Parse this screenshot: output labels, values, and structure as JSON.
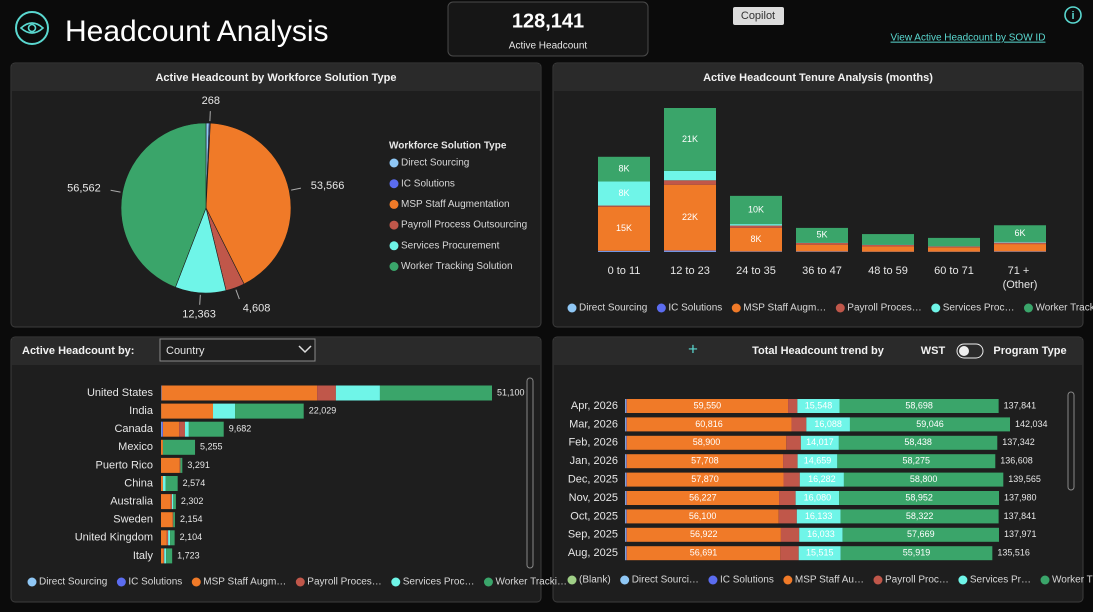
{
  "header": {
    "title": "Headcount Analysis",
    "kpi_value": "128,141",
    "kpi_label": "Active Headcount",
    "copilot": "Copilot",
    "link": "View Active Headcount by SOW ID",
    "info": "i"
  },
  "chart_data": [
    {
      "type": "pie",
      "title": "Active Headcount by Workforce Solution Type",
      "legend_title": "Workforce Solution Type",
      "categories": [
        "Direct Sourcing",
        "IC Solutions",
        "MSP Staff Augmentation",
        "Payroll Process Outsourcing",
        "Services Procurement",
        "Worker Tracking Solution"
      ],
      "colors": [
        "#8fc7f5",
        "#5b6cf0",
        "#f07a28",
        "#c0574a",
        "#6ff5e8",
        "#3aa56a"
      ],
      "values": [
        774,
        268,
        53566,
        4608,
        12363,
        56562
      ],
      "value_labels": [
        null,
        "268",
        "53,566",
        "4,608",
        "12,363",
        "56,562"
      ]
    },
    {
      "type": "stacked-column",
      "title": "Active Headcount Tenure Analysis (months)",
      "categories": [
        "0 to 11",
        "12 to 23",
        "24 to 35",
        "36 to 47",
        "48 to 59",
        "60 to 71",
        "71 + (Other)"
      ],
      "series": [
        {
          "name": "Direct Sourcing",
          "color": "#8fc7f5",
          "values": [
            200,
            200,
            100,
            100,
            50,
            50,
            100
          ]
        },
        {
          "name": "IC Solutions",
          "color": "#5b6cf0",
          "values": [
            200,
            300,
            100,
            100,
            50,
            50,
            100
          ]
        },
        {
          "name": "MSP Staff Augm…",
          "color": "#f07a28",
          "values": [
            15000,
            22400,
            8000,
            2300,
            1800,
            1500,
            2500
          ],
          "value_labels": [
            "15K",
            "22K",
            "8K",
            null,
            null,
            null,
            null
          ]
        },
        {
          "name": "Payroll Proces…",
          "color": "#c0574a",
          "values": [
            400,
            1500,
            800,
            600,
            500,
            300,
            500
          ]
        },
        {
          "name": "Services Proc…",
          "color": "#6ff5e8",
          "values": [
            8200,
            3200,
            500,
            100,
            100,
            100,
            300
          ],
          "value_labels": [
            "8K",
            null,
            null,
            null,
            null,
            null,
            null
          ]
        },
        {
          "name": "Worker Tracki…",
          "color": "#3aa56a",
          "values": [
            8400,
            21400,
            9600,
            5000,
            3600,
            2800,
            5600
          ],
          "value_labels": [
            "8K",
            "21K",
            "10K",
            "5K",
            null,
            null,
            "6K"
          ]
        }
      ]
    },
    {
      "type": "stacked-hbar",
      "title": "Active Headcount by:",
      "selector": "Country",
      "categories": [
        "United States",
        "India",
        "Canada",
        "Mexico",
        "Puerto Rico",
        "China",
        "Australia",
        "Sweden",
        "United Kingdom",
        "Italy"
      ],
      "series": [
        {
          "name": "Direct Sourcing",
          "color": "#8fc7f5",
          "values": [
            50,
            29,
            100,
            0,
            0,
            0,
            0,
            0,
            0,
            0
          ]
        },
        {
          "name": "IC Solutions",
          "color": "#5b6cf0",
          "values": [
            50,
            0,
            200,
            0,
            0,
            0,
            0,
            0,
            0,
            0
          ]
        },
        {
          "name": "MSP Staff Augm…",
          "color": "#f07a28",
          "values": [
            24000,
            8000,
            2500,
            300,
            2900,
            300,
            1500,
            1800,
            900,
            400
          ]
        },
        {
          "name": "Payroll Proces…",
          "color": "#c0574a",
          "values": [
            2900,
            0,
            900,
            0,
            100,
            0,
            200,
            100,
            200,
            100
          ]
        },
        {
          "name": "Services Proc…",
          "color": "#6ff5e8",
          "values": [
            6800,
            3400,
            600,
            0,
            0,
            400,
            200,
            0,
            300,
            300
          ]
        },
        {
          "name": "Worker Tracki…",
          "color": "#3aa56a",
          "values": [
            17300,
            10600,
            5382,
            4955,
            291,
            1874,
            402,
            254,
            704,
            923
          ]
        }
      ],
      "totals": [
        51100,
        22029,
        9682,
        5255,
        3291,
        2574,
        2302,
        2154,
        2104,
        1723
      ],
      "total_labels": [
        "51,100",
        "22,029",
        "9,682",
        "5,255",
        "3,291",
        "2,574",
        "2,302",
        "2,154",
        "2,104",
        "1,723"
      ]
    },
    {
      "type": "stacked-hbar",
      "title": "Total Headcount trend by",
      "add_button": "+",
      "toggle_left": "WST",
      "toggle_right": "Program Type",
      "categories": [
        "Apr, 2026",
        "Mar, 2026",
        "Feb, 2026",
        "Jan, 2026",
        "Dec, 2025",
        "Nov, 2025",
        "Oct, 2025",
        "Sep, 2025",
        "Aug, 2025"
      ],
      "series": [
        {
          "name": "(Blank)",
          "color": "#9fcf86",
          "values": [
            0,
            0,
            0,
            0,
            0,
            0,
            0,
            0,
            0
          ]
        },
        {
          "name": "Direct Sourci…",
          "color": "#8fc7f5",
          "values": [
            300,
            300,
            300,
            300,
            300,
            300,
            300,
            300,
            300
          ]
        },
        {
          "name": "IC Solutions",
          "color": "#5b6cf0",
          "values": [
            300,
            300,
            300,
            300,
            300,
            300,
            300,
            300,
            300
          ]
        },
        {
          "name": "MSP Staff Au…",
          "color": "#f07a28",
          "values": [
            59550,
            60816,
            58900,
            57708,
            57870,
            56227,
            56100,
            56922,
            56691
          ],
          "value_labels": [
            "59,550",
            "60,816",
            "58,900",
            "57,708",
            "57,870",
            "56,227",
            "56,100",
            "56,922",
            "56,691"
          ]
        },
        {
          "name": "Payroll Proc…",
          "color": "#c0574a",
          "values": [
            3445,
            5484,
            5387,
            5366,
            6013,
            6121,
            6686,
            6747,
            6791
          ]
        },
        {
          "name": "Services Pr…",
          "color": "#6ff5e8",
          "values": [
            15548,
            16088,
            14017,
            14659,
            16282,
            16080,
            16133,
            16033,
            15515
          ],
          "value_labels": [
            "15,548",
            "16,088",
            "14,017",
            "14,659",
            "16,282",
            "16,080",
            "16,133",
            "16,033",
            "15,515"
          ]
        },
        {
          "name": "Worker Tra…",
          "color": "#3aa56a",
          "values": [
            58698,
            59046,
            58438,
            58275,
            58800,
            58952,
            58322,
            57669,
            55919
          ],
          "value_labels": [
            "58,698",
            "59,046",
            "58,438",
            "58,275",
            "58,800",
            "58,952",
            "58,322",
            "57,669",
            "55,919"
          ]
        }
      ],
      "totals": [
        137841,
        142034,
        137342,
        136608,
        139565,
        137980,
        137841,
        137971,
        135516
      ],
      "total_labels": [
        "137,841",
        "142,034",
        "137,342",
        "136,608",
        "139,565",
        "137,980",
        "137,841",
        "137,971",
        "135,516"
      ]
    }
  ]
}
